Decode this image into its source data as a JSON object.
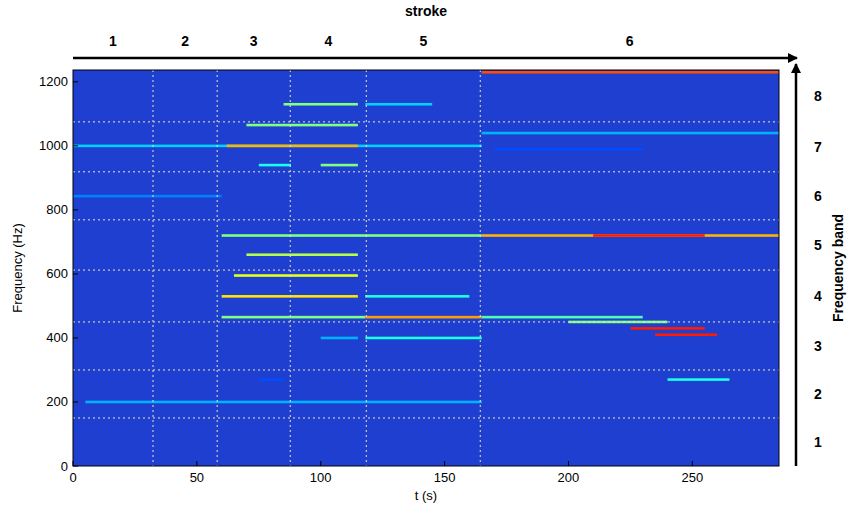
{
  "chart_data": {
    "type": "heatmap",
    "title": "stroke",
    "x_label": "t (s)",
    "y_label": "Frequency (Hz)",
    "y2_label": "Frequency band",
    "color": "#1f3fd0",
    "xlim": [
      0,
      285
    ],
    "xticks": [
      0,
      50,
      100,
      150,
      200,
      250
    ],
    "ylim": [
      0,
      1237
    ],
    "yticks": [
      0,
      200,
      400,
      600,
      800,
      1000,
      1200
    ],
    "stroke_edges": [
      32.3,
      58.2,
      87.7,
      118.4,
      164.4
    ],
    "stroke_labels": [
      "1",
      "2",
      "3",
      "4",
      "5",
      "6"
    ],
    "band_edges": [
      150,
      300,
      450,
      612,
      769,
      919,
      1075
    ],
    "band_labels": [
      "1",
      "2",
      "3",
      "4",
      "5",
      "6",
      "7",
      "8"
    ],
    "lines": [
      {
        "f": 1000,
        "t0": 0,
        "t1": 165,
        "level": 0.33
      },
      {
        "f": 1000,
        "t0": 62,
        "t1": 115,
        "level": 0.7
      },
      {
        "f": 200,
        "t0": 5,
        "t1": 165,
        "level": 0.3
      },
      {
        "f": 843,
        "t0": 0,
        "t1": 60,
        "level": 0.25
      },
      {
        "f": 720,
        "t0": 60,
        "t1": 165,
        "level": 0.5
      },
      {
        "f": 720,
        "t0": 165,
        "t1": 285,
        "level": 0.7
      },
      {
        "f": 720,
        "t0": 210,
        "t1": 255,
        "level": 0.85
      },
      {
        "f": 1130,
        "t0": 85,
        "t1": 115,
        "level": 0.5
      },
      {
        "f": 1130,
        "t0": 118,
        "t1": 145,
        "level": 0.33
      },
      {
        "f": 1065,
        "t0": 70,
        "t1": 115,
        "level": 0.5
      },
      {
        "f": 940,
        "t0": 75,
        "t1": 88,
        "level": 0.4
      },
      {
        "f": 940,
        "t0": 100,
        "t1": 115,
        "level": 0.5
      },
      {
        "f": 660,
        "t0": 70,
        "t1": 115,
        "level": 0.55
      },
      {
        "f": 595,
        "t0": 65,
        "t1": 115,
        "level": 0.6
      },
      {
        "f": 530,
        "t0": 60,
        "t1": 115,
        "level": 0.65
      },
      {
        "f": 530,
        "t0": 118,
        "t1": 160,
        "level": 0.4
      },
      {
        "f": 465,
        "t0": 60,
        "t1": 118,
        "level": 0.5
      },
      {
        "f": 465,
        "t0": 118,
        "t1": 165,
        "level": 0.72
      },
      {
        "f": 400,
        "t0": 100,
        "t1": 115,
        "level": 0.3
      },
      {
        "f": 400,
        "t0": 118,
        "t1": 165,
        "level": 0.4
      },
      {
        "f": 270,
        "t0": 75,
        "t1": 85,
        "level": 0.2
      },
      {
        "f": 1230,
        "t0": 165,
        "t1": 285,
        "level": 0.8
      },
      {
        "f": 1040,
        "t0": 165,
        "t1": 285,
        "level": 0.3
      },
      {
        "f": 990,
        "t0": 170,
        "t1": 230,
        "level": 0.2
      },
      {
        "f": 465,
        "t0": 165,
        "t1": 230,
        "level": 0.45
      },
      {
        "f": 450,
        "t0": 200,
        "t1": 240,
        "level": 0.5
      },
      {
        "f": 430,
        "t0": 225,
        "t1": 255,
        "level": 0.85
      },
      {
        "f": 410,
        "t0": 235,
        "t1": 260,
        "level": 0.85
      },
      {
        "f": 270,
        "t0": 240,
        "t1": 265,
        "level": 0.4
      }
    ]
  }
}
